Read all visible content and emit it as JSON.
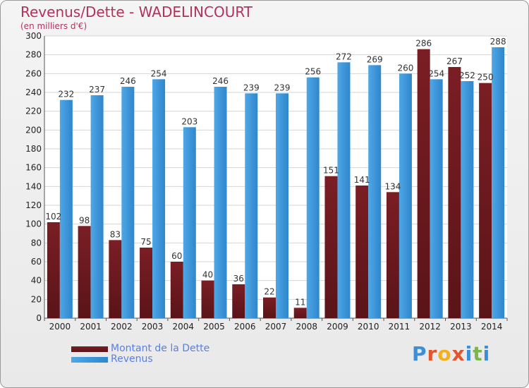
{
  "header": {
    "title": "Revenus/Dette - WADELINCOURT",
    "subtitle": "(en milliers d'€)"
  },
  "legend": {
    "debt_label": "Montant de la Dette",
    "revenue_label": "Revenus"
  },
  "logo": {
    "text": "Proxiti",
    "letter_colors": [
      "#3b8ed8",
      "#e2562d",
      "#f2b01e",
      "#e2562d",
      "#3b8ed8",
      "#7ab648",
      "#3b8ed8"
    ]
  },
  "colors": {
    "debt": "#7a1e24",
    "debt_dark": "#5a1418",
    "revenue": "#4ea7e6",
    "revenue_dark": "#2f86cc"
  },
  "chart_data": {
    "type": "bar",
    "title": "Revenus/Dette - WADELINCOURT",
    "subtitle": "(en milliers d'€)",
    "categories": [
      "2000",
      "2001",
      "2002",
      "2003",
      "2004",
      "2005",
      "2006",
      "2007",
      "2008",
      "2009",
      "2010",
      "2011",
      "2012",
      "2013",
      "2014"
    ],
    "series": [
      {
        "name": "Montant de la Dette",
        "values": [
          102,
          98,
          83,
          75,
          60,
          40,
          36,
          22,
          11,
          151,
          141,
          134,
          286,
          267,
          250
        ]
      },
      {
        "name": "Revenus",
        "values": [
          232,
          237,
          246,
          254,
          203,
          246,
          239,
          239,
          256,
          272,
          269,
          260,
          254,
          252,
          288
        ]
      }
    ],
    "ylim": [
      0,
      300
    ],
    "yticks": [
      0,
      20,
      40,
      60,
      80,
      100,
      120,
      140,
      160,
      180,
      200,
      220,
      240,
      260,
      280,
      300
    ],
    "grid": true,
    "legend_position": "bottom-left"
  }
}
